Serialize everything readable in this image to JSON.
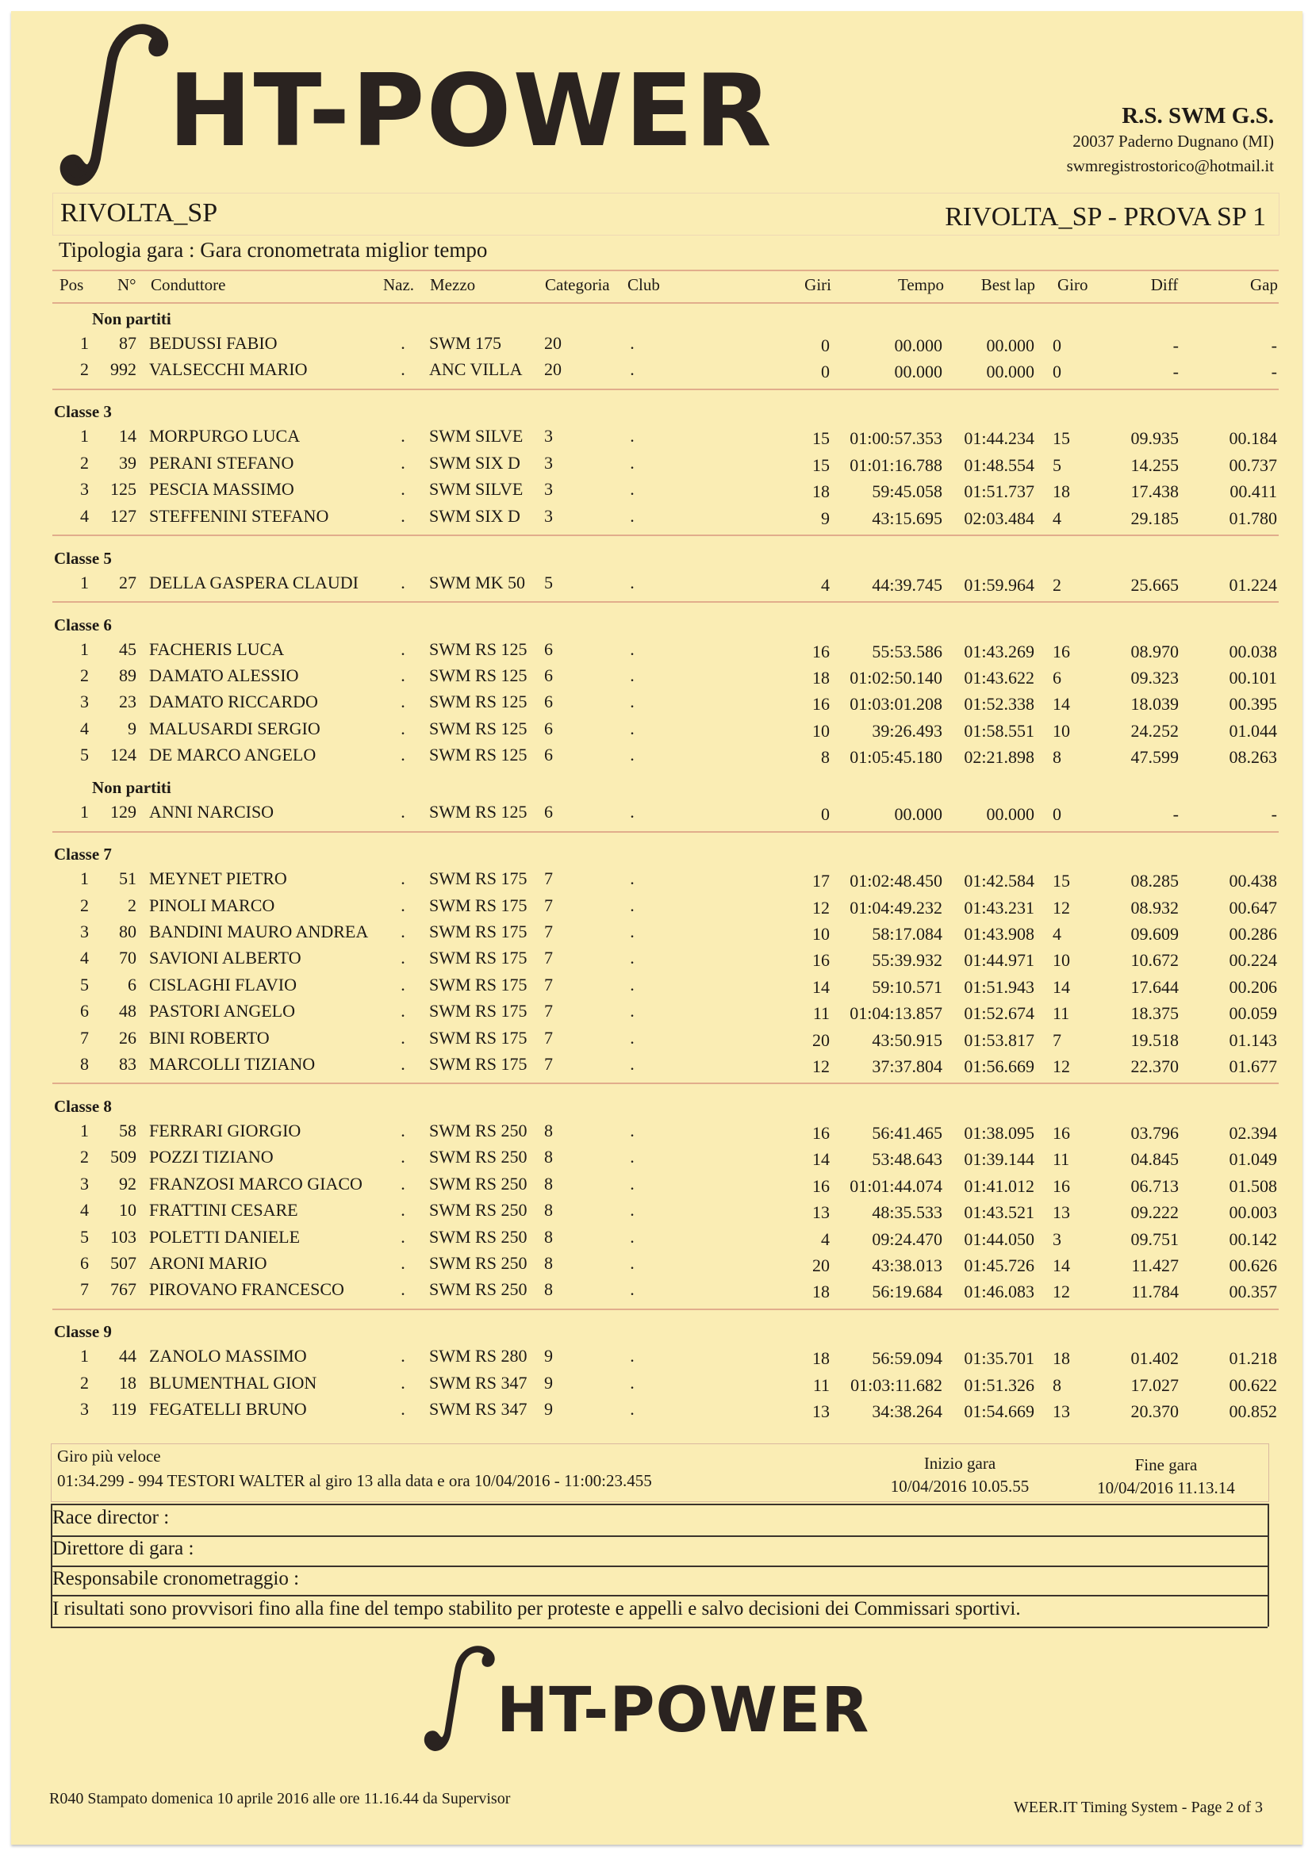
{
  "logo": {
    "text": "HT-POWER"
  },
  "org": {
    "name": "R.S. SWM G.S.",
    "address": "20037 Paderno Dugnano (MI)",
    "email": "swmregistrostorico@hotmail.it"
  },
  "event": {
    "name": "RIVOLTA_SP",
    "session": "RIVOLTA_SP - PROVA SP 1",
    "type": "Tipologia gara : Gara cronometrata  miglior tempo"
  },
  "columns": [
    "Pos",
    "N°",
    "Conduttore",
    "Naz.",
    "Mezzo",
    "Categoria",
    "Club",
    "Giri",
    "Tempo",
    "Best lap",
    "Giro",
    "Diff",
    "Gap"
  ],
  "blocks": [
    {
      "sections": [
        {
          "title": "Non partiti",
          "sub": true,
          "rows": [
            [
              "1",
              "87",
              "BEDUSSI FABIO",
              ".",
              "SWM 175",
              "20",
              ".",
              "0",
              "00.000",
              "00.000",
              "0",
              "-",
              "-"
            ],
            [
              "2",
              "992",
              "VALSECCHI MARIO",
              ".",
              "ANC VILLA",
              "20",
              ".",
              "0",
              "00.000",
              "00.000",
              "0",
              "-",
              "-"
            ]
          ]
        }
      ]
    },
    {
      "sections": [
        {
          "title": "Classe 3",
          "rows": [
            [
              "1",
              "14",
              "MORPURGO LUCA",
              ".",
              "SWM SILVE",
              "3",
              ".",
              "15",
              "01:00:57.353",
              "01:44.234",
              "15",
              "09.935",
              "00.184"
            ],
            [
              "2",
              "39",
              "PERANI STEFANO",
              ".",
              "SWM SIX D",
              "3",
              ".",
              "15",
              "01:01:16.788",
              "01:48.554",
              "5",
              "14.255",
              "00.737"
            ],
            [
              "3",
              "125",
              "PESCIA MASSIMO",
              ".",
              "SWM SILVE",
              "3",
              ".",
              "18",
              "59:45.058",
              "01:51.737",
              "18",
              "17.438",
              "00.411"
            ],
            [
              "4",
              "127",
              "STEFFENINI STEFANO",
              ".",
              "SWM SIX D",
              "3",
              ".",
              "9",
              "43:15.695",
              "02:03.484",
              "4",
              "29.185",
              "01.780"
            ]
          ]
        }
      ]
    },
    {
      "sections": [
        {
          "title": "Classe 5",
          "rows": [
            [
              "1",
              "27",
              "DELLA GASPERA CLAUDI",
              ".",
              "SWM MK 50",
              "5",
              ".",
              "4",
              "44:39.745",
              "01:59.964",
              "2",
              "25.665",
              "01.224"
            ]
          ]
        }
      ]
    },
    {
      "sections": [
        {
          "title": "Classe 6",
          "rows": [
            [
              "1",
              "45",
              "FACHERIS LUCA",
              ".",
              "SWM RS 125",
              "6",
              ".",
              "16",
              "55:53.586",
              "01:43.269",
              "16",
              "08.970",
              "00.038"
            ],
            [
              "2",
              "89",
              "DAMATO ALESSIO",
              ".",
              "SWM RS 125",
              "6",
              ".",
              "18",
              "01:02:50.140",
              "01:43.622",
              "6",
              "09.323",
              "00.101"
            ],
            [
              "3",
              "23",
              "DAMATO RICCARDO",
              ".",
              "SWM RS 125",
              "6",
              ".",
              "16",
              "01:03:01.208",
              "01:52.338",
              "14",
              "18.039",
              "00.395"
            ],
            [
              "4",
              "9",
              "MALUSARDI SERGIO",
              ".",
              "SWM RS 125",
              "6",
              ".",
              "10",
              "39:26.493",
              "01:58.551",
              "10",
              "24.252",
              "01.044"
            ],
            [
              "5",
              "124",
              "DE MARCO ANGELO",
              ".",
              "SWM RS 125",
              "6",
              ".",
              "8",
              "01:05:45.180",
              "02:21.898",
              "8",
              "47.599",
              "08.263"
            ]
          ]
        },
        {
          "title": "Non partiti",
          "sub": true,
          "rows": [
            [
              "1",
              "129",
              "ANNI NARCISO",
              ".",
              "SWM RS 125",
              "6",
              ".",
              "0",
              "00.000",
              "00.000",
              "0",
              "-",
              "-"
            ]
          ]
        }
      ]
    },
    {
      "sections": [
        {
          "title": "Classe 7",
          "rows": [
            [
              "1",
              "51",
              "MEYNET PIETRO",
              ".",
              "SWM RS 175",
              "7",
              ".",
              "17",
              "01:02:48.450",
              "01:42.584",
              "15",
              "08.285",
              "00.438"
            ],
            [
              "2",
              "2",
              "PINOLI MARCO",
              ".",
              "SWM RS 175",
              "7",
              ".",
              "12",
              "01:04:49.232",
              "01:43.231",
              "12",
              "08.932",
              "00.647"
            ],
            [
              "3",
              "80",
              "BANDINI MAURO ANDREA",
              ".",
              "SWM RS 175",
              "7",
              ".",
              "10",
              "58:17.084",
              "01:43.908",
              "4",
              "09.609",
              "00.286"
            ],
            [
              "4",
              "70",
              "SAVIONI ALBERTO",
              ".",
              "SWM RS 175",
              "7",
              ".",
              "16",
              "55:39.932",
              "01:44.971",
              "10",
              "10.672",
              "00.224"
            ],
            [
              "5",
              "6",
              "CISLAGHI FLAVIO",
              ".",
              "SWM RS 175",
              "7",
              ".",
              "14",
              "59:10.571",
              "01:51.943",
              "14",
              "17.644",
              "00.206"
            ],
            [
              "6",
              "48",
              "PASTORI ANGELO",
              ".",
              "SWM RS 175",
              "7",
              ".",
              "11",
              "01:04:13.857",
              "01:52.674",
              "11",
              "18.375",
              "00.059"
            ],
            [
              "7",
              "26",
              "BINI ROBERTO",
              ".",
              "SWM RS 175",
              "7",
              ".",
              "20",
              "43:50.915",
              "01:53.817",
              "7",
              "19.518",
              "01.143"
            ],
            [
              "8",
              "83",
              "MARCOLLI TIZIANO",
              ".",
              "SWM RS 175",
              "7",
              ".",
              "12",
              "37:37.804",
              "01:56.669",
              "12",
              "22.370",
              "01.677"
            ]
          ]
        }
      ]
    },
    {
      "sections": [
        {
          "title": "Classe 8",
          "rows": [
            [
              "1",
              "58",
              "FERRARI GIORGIO",
              ".",
              "SWM RS 250",
              "8",
              ".",
              "16",
              "56:41.465",
              "01:38.095",
              "16",
              "03.796",
              "02.394"
            ],
            [
              "2",
              "509",
              "POZZI TIZIANO",
              ".",
              "SWM RS 250",
              "8",
              ".",
              "14",
              "53:48.643",
              "01:39.144",
              "11",
              "04.845",
              "01.049"
            ],
            [
              "3",
              "92",
              "FRANZOSI MARCO GIACO",
              ".",
              "SWM RS 250",
              "8",
              ".",
              "16",
              "01:01:44.074",
              "01:41.012",
              "16",
              "06.713",
              "01.508"
            ],
            [
              "4",
              "10",
              "FRATTINI CESARE",
              ".",
              "SWM RS 250",
              "8",
              ".",
              "13",
              "48:35.533",
              "01:43.521",
              "13",
              "09.222",
              "00.003"
            ],
            [
              "5",
              "103",
              "POLETTI DANIELE",
              ".",
              "SWM RS 250",
              "8",
              ".",
              "4",
              "09:24.470",
              "01:44.050",
              "3",
              "09.751",
              "00.142"
            ],
            [
              "6",
              "507",
              "ARONI MARIO",
              ".",
              "SWM RS 250",
              "8",
              ".",
              "20",
              "43:38.013",
              "01:45.726",
              "14",
              "11.427",
              "00.626"
            ],
            [
              "7",
              "767",
              "PIROVANO FRANCESCO",
              ".",
              "SWM RS 250",
              "8",
              ".",
              "18",
              "56:19.684",
              "01:46.083",
              "12",
              "11.784",
              "00.357"
            ]
          ]
        }
      ]
    },
    {
      "sections": [
        {
          "title": "Classe 9",
          "rows": [
            [
              "1",
              "44",
              "ZANOLO MASSIMO",
              ".",
              "SWM RS 280",
              "9",
              ".",
              "18",
              "56:59.094",
              "01:35.701",
              "18",
              "01.402",
              "01.218"
            ],
            [
              "2",
              "18",
              "BLUMENTHAL GION",
              ".",
              "SWM RS 347",
              "9",
              ".",
              "11",
              "01:03:11.682",
              "01:51.326",
              "8",
              "17.027",
              "00.622"
            ],
            [
              "3",
              "119",
              "FEGATELLI BRUNO",
              ".",
              "SWM RS 347",
              "9",
              ".",
              "13",
              "34:38.264",
              "01:54.669",
              "13",
              "20.370",
              "00.852"
            ]
          ]
        }
      ]
    }
  ],
  "summary": {
    "fastest_label": "Giro più veloce",
    "fastest_value": "01:34.299 - 994 TESTORI WALTER  al giro 13 alla data e ora 10/04/2016 - 11:00:23.455",
    "start_label": "Inizio gara",
    "start_value": "10/04/2016 10.05.55",
    "end_label": "Fine gara",
    "end_value": "10/04/2016 11.13.14"
  },
  "signatures": {
    "race_director": "Race director :",
    "direttore": "Direttore di gara :",
    "cronometraggio": "Responsabile cronometraggio :",
    "disclaimer": "I risultati sono provvisori fino alla fine del tempo stabilito per proteste e appelli e salvo decisioni dei Commissari sportivi."
  },
  "footer": {
    "printed": "R040  Stampato domenica 10 aprile 2016 alle ore 11.16.44    da Supervisor",
    "system": "WEER.IT   Timing System - Page 2 of 3"
  }
}
